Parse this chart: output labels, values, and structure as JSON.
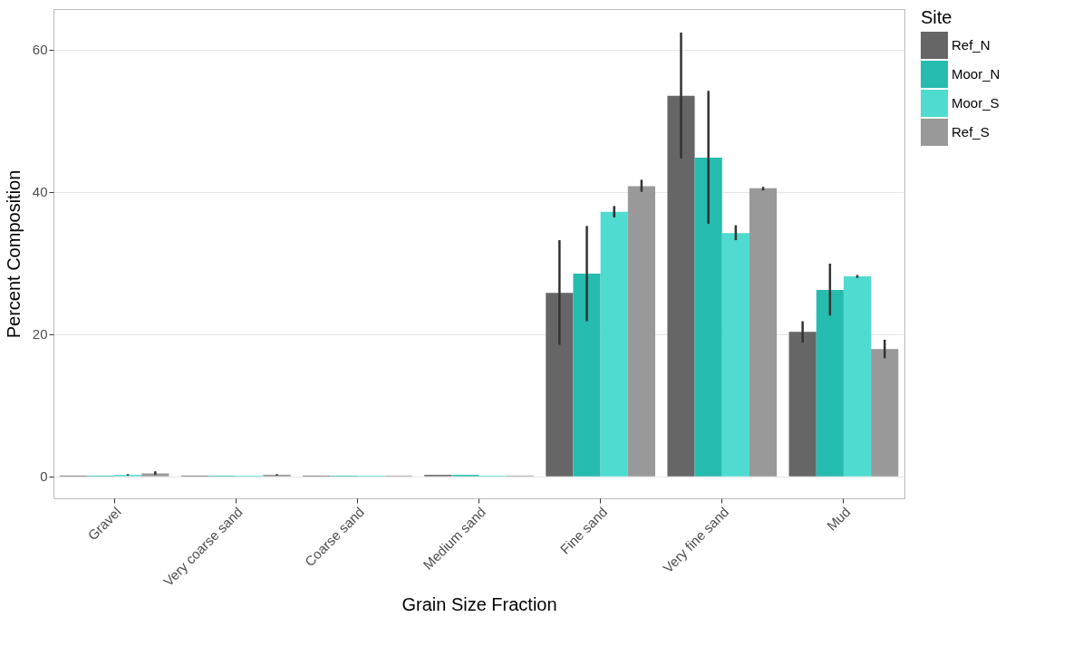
{
  "chart_data": {
    "type": "bar",
    "xlabel": "Grain Size Fraction",
    "ylabel": "Percent Composition",
    "legend_title": "Site",
    "categories": [
      "Gravel",
      "Very coarse sand",
      "Coarse sand",
      "Medium sand",
      "Fine sand",
      "Very fine sand",
      "Mud"
    ],
    "series": [
      {
        "name": "Ref_N",
        "color": "#666666",
        "values": [
          0.1,
          0.1,
          0.1,
          0.2,
          25.8,
          53.5,
          20.3
        ],
        "errors": [
          null,
          null,
          null,
          null,
          [
            18.5,
            33.2
          ],
          [
            44.7,
            62.4
          ],
          [
            18.8,
            21.8
          ]
        ]
      },
      {
        "name": "Moor_N",
        "color": "#26bcaf",
        "values": [
          0.1,
          0.1,
          0.1,
          0.2,
          28.5,
          44.8,
          26.2
        ],
        "errors": [
          null,
          null,
          null,
          null,
          [
            21.8,
            35.2
          ],
          [
            35.5,
            54.2
          ],
          [
            22.6,
            29.9
          ]
        ]
      },
      {
        "name": "Moor_S",
        "color": "#4fdbd0",
        "values": [
          0.2,
          0.1,
          0.1,
          0.1,
          37.2,
          34.2,
          28.1
        ],
        "errors": [
          [
            0.1,
            0.3
          ],
          null,
          null,
          null,
          [
            36.4,
            38.0
          ],
          [
            33.2,
            35.3
          ],
          [
            27.9,
            28.3
          ]
        ]
      },
      {
        "name": "Ref_S",
        "color": "#999999",
        "values": [
          0.4,
          0.2,
          0.1,
          0.1,
          40.8,
          40.5,
          17.9
        ],
        "errors": [
          [
            0.2,
            0.7
          ],
          [
            0.1,
            0.3
          ],
          null,
          null,
          [
            40.0,
            41.7
          ],
          [
            40.2,
            40.7
          ],
          [
            16.6,
            19.2
          ]
        ]
      }
    ],
    "ylim": [
      -3.1,
      65.7
    ],
    "yticks": [
      0,
      20,
      40,
      60
    ],
    "grid": "y",
    "legend": "right"
  }
}
